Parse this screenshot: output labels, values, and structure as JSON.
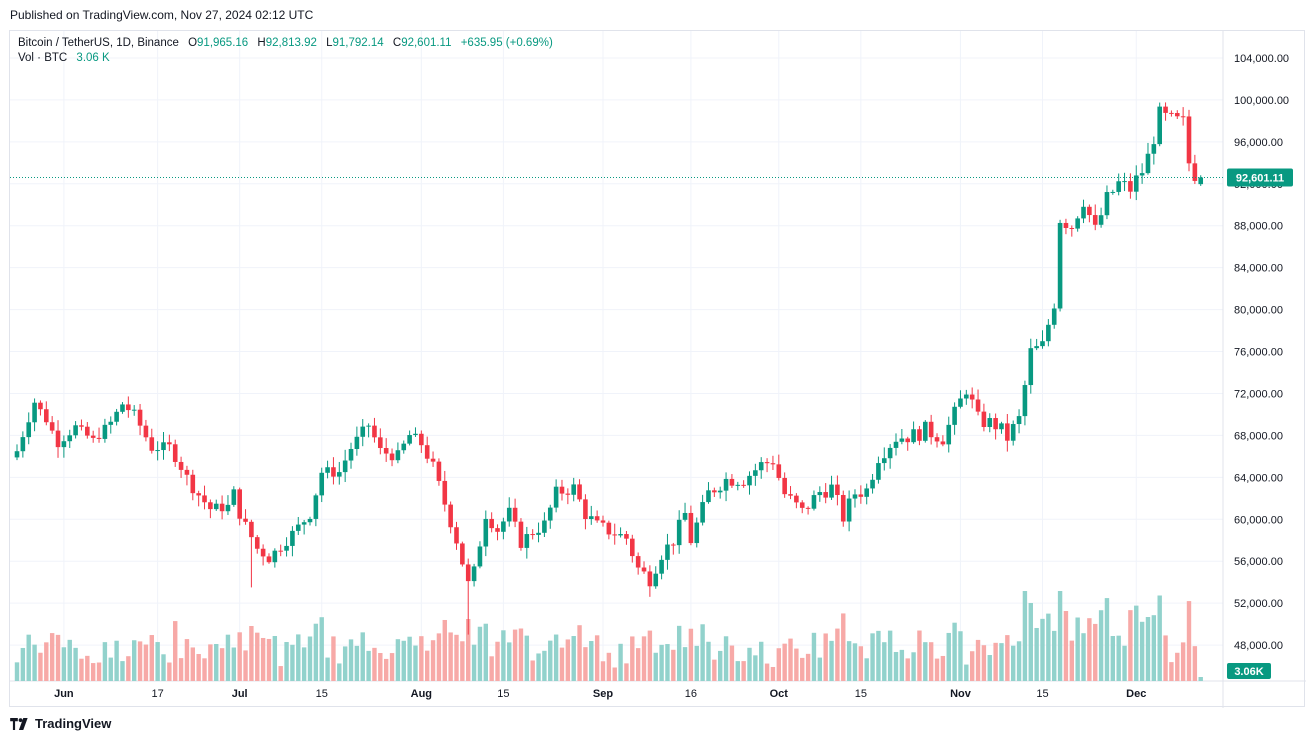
{
  "header": {
    "published": "Published on TradingView.com, Nov 27, 2024 02:12 UTC"
  },
  "legend": {
    "symbol": "Bitcoin / TetherUS, 1D, Binance",
    "o_label": "O",
    "o_value": "91,965.16",
    "h_label": "H",
    "h_value": "92,813.92",
    "l_label": "L",
    "l_value": "91,792.14",
    "c_label": "C",
    "c_value": "92,601.11",
    "change": "+635.95 (+0.69%)",
    "vol_label": "Vol · BTC",
    "vol_value": "3.06 K"
  },
  "price_tag": "92,601.11",
  "volume_tag": "3.06K",
  "brand": {
    "name": "TradingView"
  },
  "colors": {
    "up": "#089981",
    "down": "#f23645",
    "up_vol": "#92d2cc",
    "down_vol": "#f7a9a7",
    "grid": "#f0f3fa"
  },
  "chart_data": {
    "type": "candlestick",
    "title": "Bitcoin / TetherUS, 1D, Binance",
    "ylim": [
      44000,
      106000
    ],
    "y_ticks": [
      "104,000.00",
      "100,000.00",
      "96,000.00",
      "92,000.00",
      "88,000.00",
      "84,000.00",
      "80,000.00",
      "76,000.00",
      "72,000.00",
      "68,000.00",
      "64,000.00",
      "60,000.00",
      "56,000.00",
      "52,000.00",
      "48,000.00"
    ],
    "y_tick_values": [
      104000,
      100000,
      96000,
      92000,
      88000,
      84000,
      80000,
      76000,
      72000,
      68000,
      64000,
      60000,
      56000,
      52000,
      48000
    ],
    "x_ticks": [
      {
        "label": "Jun",
        "bold": true,
        "day": 8
      },
      {
        "label": "17",
        "bold": false,
        "day": 24
      },
      {
        "label": "Jul",
        "bold": true,
        "day": 38
      },
      {
        "label": "15",
        "bold": false,
        "day": 52
      },
      {
        "label": "Aug",
        "bold": true,
        "day": 69
      },
      {
        "label": "15",
        "bold": false,
        "day": 83
      },
      {
        "label": "Sep",
        "bold": true,
        "day": 100
      },
      {
        "label": "16",
        "bold": false,
        "day": 115
      },
      {
        "label": "Oct",
        "bold": true,
        "day": 130
      },
      {
        "label": "15",
        "bold": false,
        "day": 144
      },
      {
        "label": "Nov",
        "bold": true,
        "day": 161
      },
      {
        "label": "15",
        "bold": false,
        "day": 175
      },
      {
        "label": "Dec",
        "bold": true,
        "day": 191
      }
    ],
    "last_close": 92601.11,
    "waypoints": [
      [
        0,
        66500
      ],
      [
        3,
        71200
      ],
      [
        5,
        69500
      ],
      [
        7,
        67300
      ],
      [
        10,
        68800
      ],
      [
        13,
        67500
      ],
      [
        16,
        69200
      ],
      [
        18,
        71000
      ],
      [
        20,
        70000
      ],
      [
        23,
        66800
      ],
      [
        26,
        66900
      ],
      [
        28,
        65000
      ],
      [
        30,
        63000
      ],
      [
        33,
        61000
      ],
      [
        36,
        61200
      ],
      [
        37,
        62500
      ],
      [
        38,
        60500
      ],
      [
        41,
        57200
      ],
      [
        43,
        56300
      ],
      [
        46,
        58000
      ],
      [
        50,
        60500
      ],
      [
        52,
        64500
      ],
      [
        55,
        64500
      ],
      [
        57,
        66800
      ],
      [
        60,
        69000
      ],
      [
        62,
        66500
      ],
      [
        65,
        66000
      ],
      [
        67,
        68000
      ],
      [
        69,
        67200
      ],
      [
        71,
        65000
      ],
      [
        73,
        61500
      ],
      [
        75,
        58000
      ],
      [
        77,
        53800
      ],
      [
        78,
        55000
      ],
      [
        80,
        60500
      ],
      [
        82,
        59000
      ],
      [
        84,
        60600
      ],
      [
        86,
        57800
      ],
      [
        88,
        58800
      ],
      [
        90,
        59500
      ],
      [
        92,
        62500
      ],
      [
        95,
        63000
      ],
      [
        97,
        60500
      ],
      [
        99,
        59400
      ],
      [
        101,
        58900
      ],
      [
        104,
        58200
      ],
      [
        106,
        55300
      ],
      [
        108,
        54300
      ],
      [
        110,
        56700
      ],
      [
        112,
        58000
      ],
      [
        114,
        60500
      ],
      [
        115,
        58000
      ],
      [
        118,
        62500
      ],
      [
        121,
        63800
      ],
      [
        124,
        63800
      ],
      [
        127,
        65200
      ],
      [
        129,
        65600
      ],
      [
        131,
        62400
      ],
      [
        134,
        60700
      ],
      [
        137,
        62600
      ],
      [
        139,
        63000
      ],
      [
        141,
        60200
      ],
      [
        143,
        62500
      ],
      [
        145,
        62800
      ],
      [
        147,
        66000
      ],
      [
        150,
        67800
      ],
      [
        153,
        68000
      ],
      [
        155,
        68500
      ],
      [
        158,
        67800
      ],
      [
        160,
        70000
      ],
      [
        162,
        72500
      ],
      [
        164,
        69500
      ],
      [
        167,
        69000
      ],
      [
        169,
        67800
      ],
      [
        171,
        69500
      ],
      [
        173,
        75900
      ],
      [
        175,
        76500
      ],
      [
        177,
        80700
      ],
      [
        178,
        88700
      ],
      [
        180,
        88000
      ],
      [
        182,
        90500
      ],
      [
        184,
        87500
      ],
      [
        186,
        90500
      ],
      [
        188,
        92000
      ],
      [
        190,
        91500
      ],
      [
        192,
        93200
      ],
      [
        193,
        94500
      ],
      [
        195,
        98500
      ],
      [
        197,
        98000
      ],
      [
        199,
        97800
      ],
      [
        200,
        94000
      ],
      [
        201,
        93000
      ],
      [
        202,
        91966
      ]
    ],
    "last_candle": {
      "open": 91965.16,
      "high": 92813.92,
      "low": 91792.14,
      "close": 92601.11
    },
    "volume_note": "volume bars in BTC, last = 3.06 K"
  }
}
